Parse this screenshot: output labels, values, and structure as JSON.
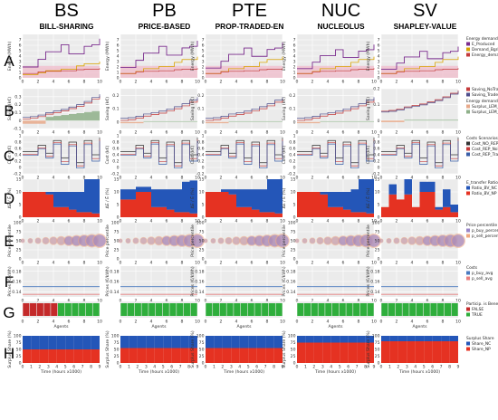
{
  "columns": [
    {
      "abbr": "BS",
      "name": "BILL-SHARING"
    },
    {
      "abbr": "PB",
      "name": "PRICE-BASED"
    },
    {
      "abbr": "PTE",
      "name": "PROP-TRADED-EN"
    },
    {
      "abbr": "NUC",
      "name": "NUCLEOLUS"
    },
    {
      "abbr": "SV",
      "name": "SHAPLEY-VALUE"
    }
  ],
  "rows": [
    "A",
    "B",
    "C",
    "D",
    "E",
    "F",
    "G",
    "H"
  ],
  "legends": {
    "A": {
      "title": "Energy demand and production",
      "entries": [
        {
          "label": "E_Produced",
          "color": "#7b2d8e"
        },
        {
          "label": "Demand_Bgrid",
          "color": "#d9a400"
        },
        {
          "label": "Energy_demand",
          "color": "#c43a3a"
        }
      ]
    },
    "B": {
      "title": "",
      "entries": [
        {
          "label": "Saving_NoTrade",
          "color": "#c43a3a"
        },
        {
          "label": "Saving_Trade",
          "color": "#4f4f8c"
        }
      ],
      "title2": "Energy demand and production",
      "entries2": [
        {
          "label": "Surplus_LEM_Trading < 0",
          "color": "#e7a98a"
        },
        {
          "label": "Surplus_LEM_Trading > 0",
          "color": "#8fb08a"
        }
      ]
    },
    "C": {
      "title": "Costs Scenarios",
      "entries": [
        {
          "label": "Cost_NO_REP",
          "color": "#333333"
        },
        {
          "label": "Cost_REP_NoTrade",
          "color": "#c43a3a"
        },
        {
          "label": "Cost_REP_Trade",
          "color": "#3a5fa8"
        }
      ]
    },
    "D": {
      "title": "E_transfer Ratio:",
      "entries": [
        {
          "label": "Ratio_BV_NC",
          "color": "#2456b8"
        },
        {
          "label": "Ratio_BV_NP",
          "color": "#e53222"
        }
      ]
    },
    "E": {
      "title": "Price percentile",
      "entries": [
        {
          "label": "p_buy_percentile",
          "color": "#9a86c8"
        },
        {
          "label": "p_sell_percentile",
          "color": "#f0a880"
        }
      ]
    },
    "F": {
      "title": "Costs",
      "entries": [
        {
          "label": "p_buy_avg",
          "color": "#4a7ac0"
        },
        {
          "label": "p_sell_avg",
          "color": "#e88080"
        }
      ]
    },
    "G": {
      "title": "Particip. is Beneficial?",
      "entries": [
        {
          "label": "FALSE",
          "color": "#c42a2a"
        },
        {
          "label": "TRUE",
          "color": "#2fae3c"
        }
      ]
    },
    "H": {
      "title": "Surplus Share",
      "entries": [
        {
          "label": "Share_NC",
          "color": "#2456b8"
        },
        {
          "label": "Share_NP",
          "color": "#e53222"
        }
      ]
    }
  },
  "axis_labels": {
    "A": "Energy (MWh)",
    "B": "Saving (k€)",
    "C": "Cost (k€)",
    "D": "ΔE / Ē (%)",
    "E": "Price percentile",
    "F": "Prices (€/kWh)",
    "G": "Agents",
    "H": "Surplus Share (%)",
    "H_x": "Time (hours x1000)"
  },
  "chart_data": {
    "type": "grid-of-subplots",
    "panels": [
      {
        "row": "A",
        "type": "line",
        "x": [
          0,
          1,
          2,
          3,
          4,
          5,
          6,
          7,
          8,
          9,
          10
        ],
        "xlim": [
          0,
          10
        ],
        "ylim": [
          0,
          8
        ],
        "yticks": [
          0,
          1,
          2,
          3,
          4,
          5,
          6,
          7
        ],
        "series": [
          {
            "name": "E_Produced",
            "values": [
              2,
              2,
              3.4,
              4.8,
              4.8,
              6.1,
              4.4,
              4.4,
              5.8,
              6.1,
              7.2
            ]
          },
          {
            "name": "Demand_Bgrid",
            "values": [
              0.6,
              0.6,
              0.9,
              1.3,
              1.3,
              1.6,
              1.6,
              2.2,
              2.6,
              2.6,
              3.0
            ]
          },
          {
            "name": "Energy_demand",
            "values": [
              0.8,
              0.8,
              1.1,
              1.2,
              1.2,
              1.3,
              1.3,
              1.5,
              1.6,
              1.6,
              1.8
            ]
          }
        ]
      },
      {
        "row": "B",
        "type": "line",
        "x": [
          0,
          1,
          2,
          3,
          4,
          5,
          6,
          7,
          8,
          9,
          10
        ],
        "xlim": [
          0,
          10
        ],
        "ylim_by_column": [
          [
            -0.1,
            0.4
          ],
          [
            -0.05,
            0.25
          ],
          [
            -0.05,
            0.25
          ],
          [
            -0.05,
            0.25
          ],
          [
            -0.05,
            0.2
          ]
        ],
        "series": [
          {
            "name": "Saving_NoTrade",
            "values": [
              0.02,
              0.03,
              0.05,
              0.08,
              0.1,
              0.12,
              0.15,
              0.18,
              0.22,
              0.27,
              0.31
            ]
          },
          {
            "name": "Saving_Trade",
            "values": [
              0.03,
              0.04,
              0.06,
              0.09,
              0.11,
              0.13,
              0.16,
              0.19,
              0.23,
              0.28,
              0.32
            ]
          }
        ]
      },
      {
        "row": "C",
        "type": "line",
        "x": [
          0,
          1,
          2,
          3,
          4,
          5,
          6,
          7,
          8,
          9,
          10
        ],
        "xlim": [
          0,
          10
        ],
        "ylim": [
          -0.2,
          1.0
        ],
        "yticks": [
          -0.2,
          0,
          0.2,
          0.4,
          0.6,
          0.8,
          1.0
        ],
        "series": [
          {
            "name": "Cost_NO_REP",
            "values": [
              0.5,
              0.5,
              0.7,
              0.45,
              0.85,
              0.3,
              0.8,
              0.15,
              0.85,
              0.4,
              0.95
            ]
          },
          {
            "name": "Cost_REP_NoTrade",
            "values": [
              0.42,
              0.42,
              0.62,
              0.35,
              0.78,
              0.18,
              0.72,
              0.05,
              0.77,
              0.28,
              0.88
            ]
          },
          {
            "name": "Cost_REP_Trade",
            "values": [
              0.38,
              0.38,
              0.58,
              0.3,
              0.74,
              0.1,
              0.68,
              -0.02,
              0.72,
              0.2,
              0.84
            ]
          }
        ]
      },
      {
        "row": "D",
        "type": "bar",
        "xlim": [
          0,
          10
        ],
        "ylim": [
          0,
          15
        ],
        "yticks": [
          0,
          5,
          10,
          15
        ],
        "series_by_column": [
          {
            "Ratio_BV_NP": [
              10,
              10,
              10,
              9,
              4,
              4,
              3,
              2,
              2,
              1.5
            ],
            "Ratio_BV_NC": [
              0,
              0,
              0,
              1,
              6,
              6,
              7,
              8,
              13,
              13.5
            ]
          },
          {
            "Ratio_BV_NP": [
              7,
              7,
              10,
              10,
              4,
              4,
              3,
              2,
              2,
              1.5
            ],
            "Ratio_BV_NC": [
              4,
              4,
              2,
              2,
              7,
              7,
              8,
              9,
              12,
              13
            ]
          },
          {
            "Ratio_BV_NP": [
              10,
              10,
              10,
              9,
              4,
              4,
              3,
              2,
              2,
              1.5
            ],
            "Ratio_BV_NC": [
              0,
              0,
              1,
              2,
              7,
              7,
              8,
              9,
              13,
              13.5
            ]
          },
          {
            "Ratio_BV_NP": [
              10,
              10,
              10,
              9,
              4,
              4,
              3,
              2,
              2,
              1.5
            ],
            "Ratio_BV_NC": [
              0,
              0,
              0,
              1,
              6,
              6,
              7,
              9,
              13,
              13.5
            ]
          },
          {
            "Ratio_BV_NP": [
              4,
              9,
              7,
              9,
              4,
              10,
              10,
              3,
              4,
              2
            ],
            "Ratio_BV_NC": [
              0,
              4,
              0,
              6,
              0,
              4,
              4,
              1,
              7,
              3
            ]
          }
        ]
      },
      {
        "row": "E",
        "type": "scatter",
        "xlim": [
          0,
          10
        ],
        "ylim": [
          0,
          100
        ],
        "yticks": [
          0,
          25,
          50,
          75,
          100
        ],
        "series": [
          {
            "name": "p_buy_percentile",
            "values": [
              50,
              50,
              50,
              50,
              50,
              50,
              50,
              50,
              50,
              50
            ]
          },
          {
            "name": "p_sell_percentile",
            "values": [
              50,
              50,
              50,
              50,
              50,
              50,
              50,
              50,
              50,
              50
            ]
          }
        ]
      },
      {
        "row": "F",
        "type": "line",
        "xlim": [
          0,
          10
        ],
        "ylim": [
          0.13,
          0.19
        ],
        "yticks": [
          0.14,
          0.16,
          0.18
        ],
        "series": [
          {
            "name": "p_buy_avg",
            "values": [
              0.15
            ]
          },
          {
            "name": "p_sell_avg",
            "values": [
              0.135
            ]
          }
        ]
      },
      {
        "row": "G",
        "type": "heatmap",
        "xlim": [
          0,
          10
        ],
        "xlabel": "Agents",
        "beneficial_by_column": [
          [
            false,
            false,
            false,
            false,
            false,
            true,
            true,
            true,
            true,
            true,
            true
          ],
          [
            true,
            true,
            true,
            true,
            true,
            true,
            true,
            true,
            true,
            true,
            true
          ],
          [
            true,
            true,
            true,
            true,
            true,
            true,
            true,
            true,
            true,
            true,
            true
          ],
          [
            true,
            true,
            true,
            true,
            true,
            true,
            true,
            true,
            true,
            true,
            true
          ],
          [
            true,
            true,
            true,
            true,
            true,
            true,
            true,
            true,
            true,
            true,
            true
          ]
        ]
      },
      {
        "row": "H",
        "type": "area",
        "xlim": [
          0,
          9
        ],
        "xlabel": "Time (hours x1000)",
        "ylim": [
          0,
          100
        ],
        "yticks": [
          0,
          25,
          50,
          75,
          100
        ],
        "share_nc_by_column": [
          50,
          45,
          45,
          25,
          20
        ]
      }
    ]
  }
}
